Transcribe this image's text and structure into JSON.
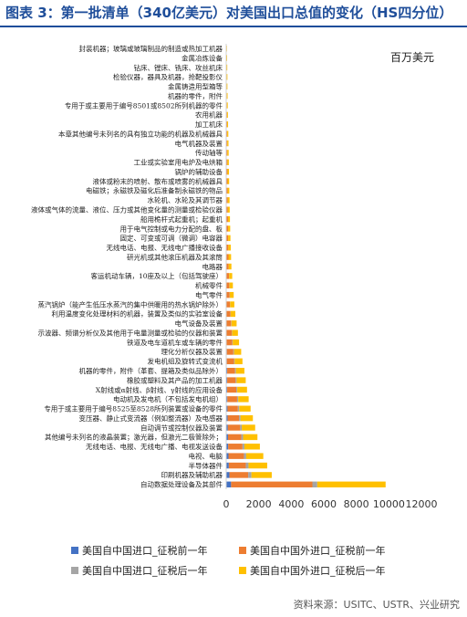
{
  "header": {
    "title": "图表 3：第一批清单（340亿美元）对美国出口总值的变化（HS四分位）"
  },
  "footer": {
    "source": "资料来源：USITC、USTR、兴业研究"
  },
  "chart_data": {
    "type": "bar",
    "orientation": "horizontal",
    "stacked": true,
    "unit": "百万美元",
    "xlim": [
      0,
      12000
    ],
    "xticks": [
      "0",
      "2000",
      "4000",
      "6000",
      "8000",
      "10000",
      "12000"
    ],
    "grid": false,
    "legend_position": "bottom",
    "colors": [
      "#4472c4",
      "#ed7d31",
      "#a5a5a5",
      "#ffc000"
    ],
    "categories": [
      "封装机器；玻璃或玻璃制品的制造或热加工机器",
      "金属冶炼设备",
      "钻床、镗床、铣床、攻丝机床",
      "检验仪器，器具及机器，抢靶投影仪",
      "金属铸造用型箱等",
      "机器的零件，附件",
      "专用于或主要用于编号8501或8502所列机器的零件",
      "农用机器",
      "加工机床",
      "本章其他编号未列名的具有独立功能的机器及机械器具",
      "电气机器及装置",
      "传动轴等",
      "工业或实验室用电炉及电烘箱",
      "锅炉的辅助设备",
      "液体或粉末的喷射、散布或喷雾的机械器具",
      "电磁铁；永磁铁及磁化后准备制永磁铁的物品",
      "水轮机、水轮及其调节器",
      "液体或气体的流量、液位、压力或其他变化量的测量或检验仪器",
      "船用桅杆式起重机；起重机",
      "用于电气控制或电力分配的盘、板",
      "固定、可变或可调（微调）电容器",
      "无线电话、电报、无线电广播接收设备",
      "研光机或其他滚压机器及其滚筒",
      "电路器",
      "客运机动车辆，10座及以上（包括驾驶座）",
      "机械零件",
      "电气零件",
      "蒸汽锅炉（能产生低压水蒸汽的集中供暖用的热水锅炉除外）",
      "利用温度变化处理材料的机器，装置及类似的实验室设备",
      "电气设备及装置",
      "示波器、频谱分析仪及其他用于电量测量或检验的仪器和装置",
      "铁道及电车道机车或车辆的零件",
      "理化分析仪器及装置",
      "发电机组及旋转式变流机",
      "机器的零件，附件（革套、提箱及类似品除外）",
      "橡胶或塑料及其产品的加工机器",
      "X射线或α射线、β射线、γ射线的应用设备",
      "电动机及发电机（不包括发电机组）",
      "专用于或主要用于编号8525至8528所列装置或设备的零件",
      "变压器、静止式变流器（例如整流器）及电感器",
      "自动调节或控制仪器及装置",
      "其他编号未列名的液晶装置；激光器，但激光二极管除外；",
      "无线电话、电报、无线电广播、电视发送设备",
      "电视、电脑",
      "半导体器件",
      "印刷机器及辅助机器",
      "自动数据处理设备及其部件"
    ],
    "series": [
      {
        "name": "美国自中国进口_征税前一年",
        "values": [
          0,
          0,
          0,
          0,
          0,
          0,
          0,
          0,
          0,
          0,
          0,
          0,
          0,
          0,
          0,
          0,
          0,
          0,
          0,
          0,
          0,
          0,
          0,
          0,
          10,
          10,
          10,
          10,
          15,
          20,
          20,
          30,
          40,
          40,
          60,
          60,
          60,
          70,
          80,
          90,
          100,
          110,
          120,
          140,
          160,
          200,
          300
        ]
      },
      {
        "name": "美国自中国外进口_征税前一年",
        "values": [
          20,
          25,
          30,
          35,
          35,
          40,
          45,
          50,
          55,
          60,
          65,
          70,
          75,
          80,
          85,
          90,
          95,
          100,
          110,
          115,
          120,
          130,
          140,
          150,
          160,
          180,
          200,
          220,
          240,
          280,
          320,
          340,
          400,
          440,
          480,
          520,
          560,
          600,
          640,
          700,
          760,
          820,
          880,
          950,
          1050,
          1150,
          5000
        ]
      },
      {
        "name": "美国自中国进口_征税后一年",
        "values": [
          0,
          0,
          0,
          0,
          0,
          0,
          0,
          0,
          0,
          0,
          0,
          0,
          0,
          0,
          0,
          0,
          0,
          0,
          0,
          0,
          0,
          0,
          0,
          0,
          10,
          10,
          10,
          10,
          15,
          20,
          20,
          30,
          40,
          40,
          60,
          60,
          60,
          70,
          80,
          90,
          100,
          110,
          120,
          140,
          160,
          200,
          300
        ]
      },
      {
        "name": "美国自中国外进口_征税后一年",
        "values": [
          25,
          30,
          35,
          40,
          40,
          45,
          50,
          55,
          60,
          70,
          75,
          80,
          85,
          90,
          95,
          100,
          110,
          115,
          120,
          130,
          140,
          150,
          160,
          170,
          190,
          210,
          240,
          260,
          290,
          320,
          360,
          390,
          440,
          480,
          520,
          560,
          600,
          640,
          700,
          760,
          820,
          880,
          950,
          1050,
          1150,
          1250,
          4200
        ]
      }
    ]
  }
}
